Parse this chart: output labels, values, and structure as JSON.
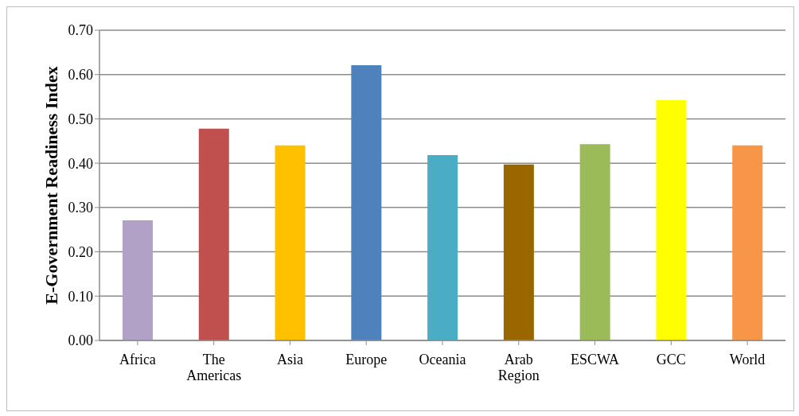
{
  "chart_data": {
    "type": "bar",
    "ylabel": "E-Government Readiness Index",
    "categories": [
      "Africa",
      "The Americas",
      "Asia",
      "Europe",
      "Oceania",
      "Arab Region",
      "ESCWA",
      "GCC",
      "World"
    ],
    "values": [
      0.271,
      0.478,
      0.44,
      0.621,
      0.418,
      0.397,
      0.443,
      0.542,
      0.44
    ],
    "colors": [
      "#b2a1c7",
      "#c0504d",
      "#ffc000",
      "#4f81bd",
      "#4bacc6",
      "#996600",
      "#9bbb59",
      "#ffff00",
      "#f79646"
    ],
    "ylim": [
      0,
      0.7
    ],
    "yticks": [
      {
        "value": 0,
        "label": "0.00"
      },
      {
        "value": 0.1,
        "label": "0.10"
      },
      {
        "value": 0.2,
        "label": "0.20"
      },
      {
        "value": 0.3,
        "label": "0.30"
      },
      {
        "value": 0.4,
        "label": "0.40"
      },
      {
        "value": 0.5,
        "label": "0.50"
      },
      {
        "value": 0.6,
        "label": "0.60"
      },
      {
        "value": 0.7,
        "label": "0.70"
      }
    ],
    "grid": "y"
  }
}
